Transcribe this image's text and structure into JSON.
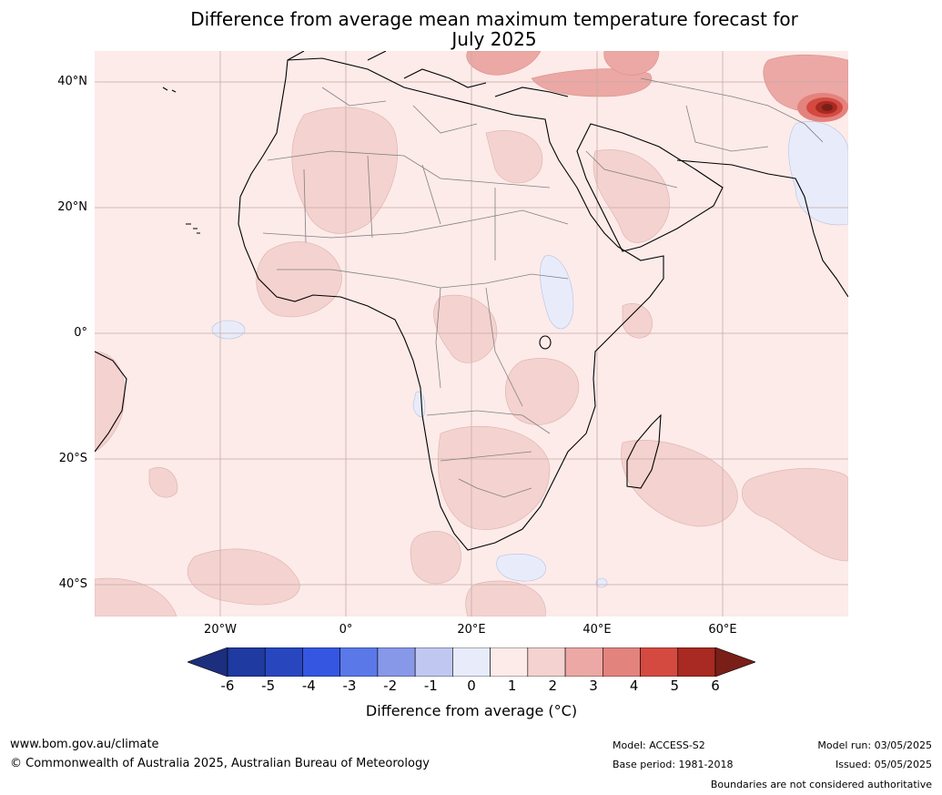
{
  "title": {
    "line1": "Difference from average mean maximum temperature forecast for",
    "line2": "July 2025"
  },
  "map": {
    "lat_labels": [
      "40°N",
      "20°N",
      "0°",
      "20°S",
      "40°S"
    ],
    "lon_labels": [
      "20°W",
      "0°",
      "20°E",
      "40°E",
      "60°E"
    ]
  },
  "colorbar": {
    "ticks": [
      "-6",
      "-5",
      "-4",
      "-3",
      "-2",
      "-1",
      "0",
      "1",
      "2",
      "3",
      "4",
      "5",
      "6"
    ],
    "colors": [
      "#1f3aa0",
      "#2847bf",
      "#3556e0",
      "#5a78e8",
      "#8898e8",
      "#c0c8f2",
      "#e8ecfa",
      "#fcebe9",
      "#f4d2cf",
      "#eba8a4",
      "#e3837d",
      "#d44a40",
      "#a82a22"
    ],
    "under_color": "#1c2f7e",
    "over_color": "#7a1e18",
    "label": "Difference from average ($^\\circ$C)",
    "label_display": "Difference from average (°C)"
  },
  "footer": {
    "url": "www.bom.gov.au/climate",
    "copyright": "© Commonwealth of Australia 2025, Australian Bureau of Meteorology",
    "model": "Model: ACCESS-S2",
    "base_period": "Base period: 1981-2018",
    "model_run": "Model run: 03/05/2025",
    "issued": "Issued: 05/05/2025",
    "disclaimer": "Boundaries are not considered authoritative"
  }
}
